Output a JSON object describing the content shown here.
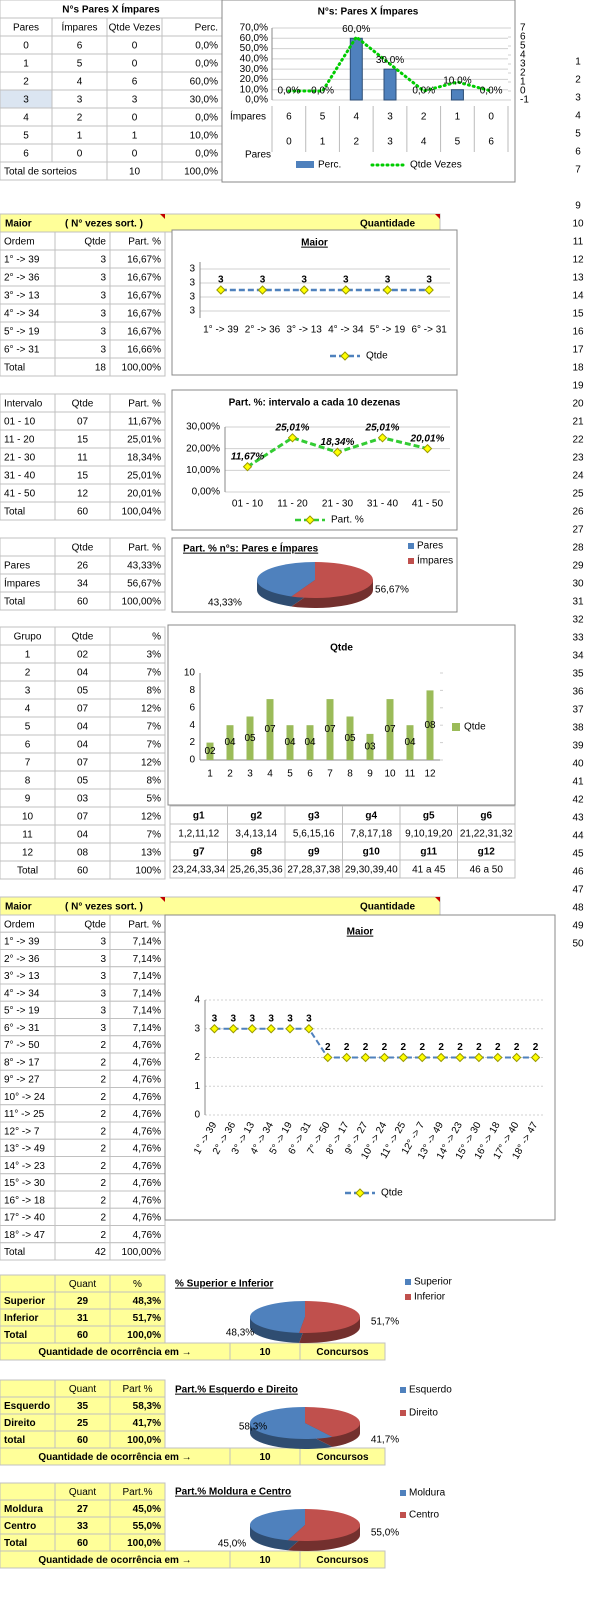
{
  "pares_impares_table": {
    "title": "N°s Pares X Ímpares",
    "header": [
      "Pares",
      "Ímpares",
      "Qtde Vezes",
      "Perc."
    ],
    "rows": [
      [
        "0",
        "6",
        "0",
        "0,0%"
      ],
      [
        "1",
        "5",
        "0",
        "0,0%"
      ],
      [
        "2",
        "4",
        "6",
        "60,0%"
      ],
      [
        "3",
        "3",
        "3",
        "30,0%"
      ],
      [
        "4",
        "2",
        "0",
        "0,0%"
      ],
      [
        "5",
        "1",
        "1",
        "10,0%"
      ],
      [
        "6",
        "0",
        "0",
        "0,0%"
      ]
    ],
    "total": [
      "Total de sorteios",
      "10",
      "100,0%"
    ]
  },
  "pares_impares_chart": {
    "type": "bar",
    "title": "N°s: Pares X Ímpares",
    "category_rows": [
      {
        "name": "Ímpares",
        "values": [
          "6",
          "5",
          "4",
          "3",
          "2",
          "1",
          "0"
        ]
      },
      {
        "name": "Pares",
        "values": [
          "0",
          "1",
          "2",
          "3",
          "4",
          "5",
          "6"
        ]
      }
    ],
    "series": [
      {
        "name": "Perc.",
        "color": "#4f81bd",
        "values": [
          0,
          0,
          60,
          30,
          0,
          10,
          0
        ],
        "value_labels": [
          "0,0%",
          "0,0%",
          "60,0%",
          "30,0%",
          "0,0%",
          "10,0%",
          "0,0%"
        ]
      },
      {
        "name": "Qtde Vezes",
        "color": "#00cc00",
        "axis": "y2",
        "values": [
          0,
          0,
          6,
          3,
          0,
          1,
          0
        ]
      }
    ],
    "ylim": [
      0,
      70
    ],
    "yticks": [
      {
        "value": 0,
        "label": "0,0%"
      },
      {
        "value": 10,
        "label": "10,0%"
      },
      {
        "value": 20,
        "label": "20,0%"
      },
      {
        "value": 30,
        "label": "30,0%"
      },
      {
        "value": 40,
        "label": "40,0%"
      },
      {
        "value": 50,
        "label": "50,0%"
      },
      {
        "value": 60,
        "label": "60,0%"
      },
      {
        "value": 70,
        "label": "70,0%"
      }
    ],
    "y2lim": [
      -1,
      7
    ],
    "y2ticks": [
      -1,
      0,
      1,
      2,
      3,
      4,
      5,
      6,
      7
    ]
  },
  "maior_header": [
    "Maior",
    "( N° vezes sort. )",
    "Quantidade"
  ],
  "maior_table": {
    "header": [
      "Ordem",
      "Qtde",
      "Part. %"
    ],
    "rows": [
      [
        "1° -> 39",
        "3",
        "16,67%"
      ],
      [
        "2° -> 36",
        "3",
        "16,67%"
      ],
      [
        "3° -> 13",
        "3",
        "16,67%"
      ],
      [
        "4° -> 34",
        "3",
        "16,67%"
      ],
      [
        "5° -> 19",
        "3",
        "16,67%"
      ],
      [
        "6° -> 31",
        "3",
        "16,66%"
      ]
    ],
    "total": [
      "Total",
      "18",
      "100,00%"
    ]
  },
  "maior_chart": {
    "type": "line",
    "title": "Maior",
    "categories": [
      "1° -> 39",
      "2° -> 36",
      "3° -> 13",
      "4° -> 34",
      "5° -> 19",
      "6° -> 31"
    ],
    "series": [
      {
        "name": "Qtde",
        "color": "#4f81bd",
        "values": [
          3,
          3,
          3,
          3,
          3,
          3
        ]
      }
    ],
    "ylim": [
      2.6,
      3.4
    ],
    "yticks": [
      {
        "value": 2.7,
        "label": "3"
      },
      {
        "value": 2.9,
        "label": "3"
      },
      {
        "value": 3.1,
        "label": "3"
      },
      {
        "value": 3.3,
        "label": "3"
      }
    ]
  },
  "intervalo_table": {
    "header": [
      "Intervalo",
      "Qtde",
      "Part. %"
    ],
    "rows": [
      [
        "01 - 10",
        "07",
        "11,67%"
      ],
      [
        "11 - 20",
        "15",
        "25,01%"
      ],
      [
        "21 - 30",
        "11",
        "18,34%"
      ],
      [
        "31 - 40",
        "15",
        "25,01%"
      ],
      [
        "41 - 50",
        "12",
        "20,01%"
      ]
    ],
    "total": [
      "Total",
      "60",
      "100,04%"
    ]
  },
  "intervalo_chart": {
    "type": "line",
    "title": "Part. %: intervalo a cada 10 dezenas",
    "categories": [
      "01 - 10",
      "11 - 20",
      "21 - 30",
      "31 - 40",
      "41 - 50"
    ],
    "series": [
      {
        "name": "Part. %",
        "color": "#33cc33",
        "values": [
          11.67,
          25.01,
          18.34,
          25.01,
          20.01
        ],
        "value_labels": [
          "11,67%",
          "25,01%",
          "18,34%",
          "25,01%",
          "20,01%"
        ]
      }
    ],
    "ylim": [
      0,
      30
    ],
    "yticks": [
      {
        "value": 0,
        "label": "0,00%"
      },
      {
        "value": 10,
        "label": "10,00%"
      },
      {
        "value": 20,
        "label": "20,00%"
      },
      {
        "value": 30,
        "label": "30,00%"
      }
    ]
  },
  "pares_table": {
    "header": [
      "Qtde",
      "Part. %"
    ],
    "rows": [
      [
        "Pares",
        "26",
        "43,33%"
      ],
      [
        "Ímpares",
        "34",
        "56,67%"
      ]
    ],
    "total": [
      "Total",
      "60",
      "100,00%"
    ]
  },
  "pares_chart": {
    "type": "pie",
    "title": "Part. % n°s: Pares e Ímpares",
    "labels": [
      "Pares",
      "Ímpares"
    ],
    "values": [
      43.33,
      56.67
    ],
    "value_labels": [
      "43,33%",
      "56,67%"
    ],
    "colors": [
      "#4f81bd",
      "#c0504d"
    ]
  },
  "grupo_table": {
    "header": [
      "Grupo",
      "Qtde",
      "%"
    ],
    "rows": [
      [
        "1",
        "02",
        "3%"
      ],
      [
        "2",
        "04",
        "7%"
      ],
      [
        "3",
        "05",
        "8%"
      ],
      [
        "4",
        "07",
        "12%"
      ],
      [
        "5",
        "04",
        "7%"
      ],
      [
        "6",
        "04",
        "7%"
      ],
      [
        "7",
        "07",
        "12%"
      ],
      [
        "8",
        "05",
        "8%"
      ],
      [
        "9",
        "03",
        "5%"
      ],
      [
        "10",
        "07",
        "12%"
      ],
      [
        "11",
        "04",
        "7%"
      ],
      [
        "12",
        "08",
        "13%"
      ]
    ],
    "total": [
      "Total",
      "60",
      "100%"
    ]
  },
  "grupo_chart": {
    "type": "bar",
    "title": "Qtde",
    "categories": [
      "1",
      "2",
      "3",
      "4",
      "5",
      "6",
      "7",
      "8",
      "9",
      "10",
      "11",
      "12"
    ],
    "series": [
      {
        "name": "Qtde",
        "color": "#9bbb59",
        "values": [
          2,
          4,
          5,
          7,
          4,
          4,
          7,
          5,
          3,
          7,
          4,
          8
        ],
        "value_labels": [
          "02",
          "04",
          "05",
          "07",
          "04",
          "04",
          "07",
          "05",
          "03",
          "07",
          "04",
          "08"
        ]
      }
    ],
    "ylim": [
      0,
      10
    ],
    "yticks": [
      0,
      2,
      4,
      6,
      8,
      10
    ]
  },
  "grupos": {
    "labels": [
      "g1",
      "g2",
      "g3",
      "g4",
      "g5",
      "g6",
      "g7",
      "g8",
      "g9",
      "g10",
      "g11",
      "g12"
    ],
    "ranges": [
      "1,2,11,12",
      "3,4,13,14",
      "5,6,15,16",
      "7,8,17,18",
      "9,10,19,20",
      "21,22,31,32",
      "23,24,33,34",
      "25,26,35,36",
      "27,28,37,38",
      "29,30,39,40",
      "41 a 45",
      "46 a 50"
    ]
  },
  "maior2_header": [
    "Maior",
    "( N° vezes sort. )",
    "Quantidade"
  ],
  "maior2_table": {
    "header": [
      "Ordem",
      "Qtde",
      "Part. %"
    ],
    "rows": [
      [
        "1° -> 39",
        "3",
        "7,14%"
      ],
      [
        "2° -> 36",
        "3",
        "7,14%"
      ],
      [
        "3° -> 13",
        "3",
        "7,14%"
      ],
      [
        "4° -> 34",
        "3",
        "7,14%"
      ],
      [
        "5° -> 19",
        "3",
        "7,14%"
      ],
      [
        "6° -> 31",
        "3",
        "7,14%"
      ],
      [
        "7° -> 50",
        "2",
        "4,76%"
      ],
      [
        "8° -> 17",
        "2",
        "4,76%"
      ],
      [
        "9° -> 27",
        "2",
        "4,76%"
      ],
      [
        "10° -> 24",
        "2",
        "4,76%"
      ],
      [
        "11° -> 25",
        "2",
        "4,76%"
      ],
      [
        "12° -> 7",
        "2",
        "4,76%"
      ],
      [
        "13° -> 49",
        "2",
        "4,76%"
      ],
      [
        "14° -> 23",
        "2",
        "4,76%"
      ],
      [
        "15° -> 30",
        "2",
        "4,76%"
      ],
      [
        "16° -> 18",
        "2",
        "4,76%"
      ],
      [
        "17° -> 40",
        "2",
        "4,76%"
      ],
      [
        "18° -> 47",
        "2",
        "4,76%"
      ]
    ],
    "total": [
      "Total",
      "42",
      "100,00%"
    ]
  },
  "maior2_chart": {
    "type": "line",
    "title": "Maior",
    "categories": [
      "1° -> 39",
      "2° -> 36",
      "3° -> 13",
      "4° -> 34",
      "5° -> 19",
      "6° -> 31",
      "7° -> 50",
      "8° -> 17",
      "9° -> 27",
      "10° -> 24",
      "11° -> 25",
      "12° -> 7",
      "13° -> 49",
      "14° -> 23",
      "15° -> 30",
      "16° -> 18",
      "17° -> 40",
      "18° -> 47"
    ],
    "series": [
      {
        "name": "Qtde",
        "color": "#4f81bd",
        "values": [
          3,
          3,
          3,
          3,
          3,
          3,
          2,
          2,
          2,
          2,
          2,
          2,
          2,
          2,
          2,
          2,
          2,
          2
        ]
      }
    ],
    "ylim": [
      0,
      4
    ],
    "yticks": [
      0,
      1,
      2,
      3,
      4
    ]
  },
  "superior_table": {
    "header": [
      "Quant",
      "%"
    ],
    "rows": [
      [
        "Superior",
        "29",
        "48,3%"
      ],
      [
        "Inferior",
        "31",
        "51,7%"
      ]
    ],
    "total": [
      "Total",
      "60",
      "100,0%"
    ],
    "footer": [
      "Quantidade de ocorrência em →",
      "10",
      "Concursos"
    ]
  },
  "superior_chart": {
    "type": "pie",
    "title": "% Superior e Inferior",
    "labels": [
      "Superior",
      "Inferior"
    ],
    "values": [
      48.3,
      51.7
    ],
    "value_labels": [
      "48,3%",
      "51,7%"
    ],
    "colors": [
      "#4f81bd",
      "#c0504d"
    ]
  },
  "esquerdo_table": {
    "header": [
      "Quant",
      "Part %"
    ],
    "rows": [
      [
        "Esquerdo",
        "35",
        "58,3%"
      ],
      [
        "Direito",
        "25",
        "41,7%"
      ]
    ],
    "total": [
      "total",
      "60",
      "100,0%"
    ],
    "footer": [
      "Quantidade de ocorrência em →",
      "10",
      "Concursos"
    ]
  },
  "esquerdo_chart": {
    "type": "pie",
    "title": "Part.% Esquerdo e Direito",
    "labels": [
      "Esquerdo",
      "Direito"
    ],
    "values": [
      58.3,
      41.7
    ],
    "value_labels": [
      "58,3%",
      "41,7%"
    ],
    "colors": [
      "#4f81bd",
      "#c0504d"
    ]
  },
  "moldura_table": {
    "header": [
      "Quant",
      "Part.%"
    ],
    "rows": [
      [
        "Moldura",
        "27",
        "45,0%"
      ],
      [
        "Centro",
        "33",
        "55,0%"
      ]
    ],
    "total": [
      "Total",
      "60",
      "100,0%"
    ],
    "footer": [
      "Quantidade de ocorrência em →",
      "10",
      "Concursos"
    ]
  },
  "moldura_chart": {
    "type": "pie",
    "title": "Part.% Moldura e Centro",
    "labels": [
      "Moldura",
      "Centro"
    ],
    "values": [
      45.0,
      55.0
    ],
    "value_labels": [
      "45,0%",
      "55,0%"
    ],
    "colors": [
      "#4f81bd",
      "#c0504d"
    ]
  },
  "row_numbers": [
    1,
    2,
    3,
    4,
    5,
    6,
    7,
    9,
    10,
    11,
    12,
    13,
    14,
    15,
    16,
    17,
    18,
    19,
    20,
    21,
    22,
    23,
    24,
    25,
    26,
    27,
    28,
    29,
    30,
    31,
    32,
    33,
    34,
    35,
    36,
    37,
    38,
    39,
    40,
    41,
    42,
    43,
    44,
    45,
    46,
    47,
    48,
    49,
    50
  ]
}
